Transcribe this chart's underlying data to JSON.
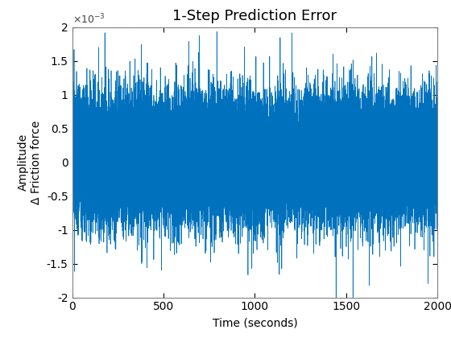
{
  "title": "1-Step Prediction Error",
  "xlabel": "Time (seconds)",
  "ylabel1": "Amplitude",
  "ylabel2": "Δ Friction force",
  "xlim": [
    0,
    2000
  ],
  "ylim": [
    -0.002,
    0.002
  ],
  "ytick_vals": [
    -2,
    -1.5,
    -1,
    -0.5,
    0,
    0.5,
    1,
    1.5,
    2
  ],
  "xticks": [
    0,
    500,
    1000,
    1500,
    2000
  ],
  "line_color": "#0072BD",
  "n_points": 40000,
  "seed": 42,
  "noise_std": 0.00042,
  "background_color": "#ffffff",
  "title_fontsize": 13,
  "label_fontsize": 10,
  "tick_fontsize": 10
}
